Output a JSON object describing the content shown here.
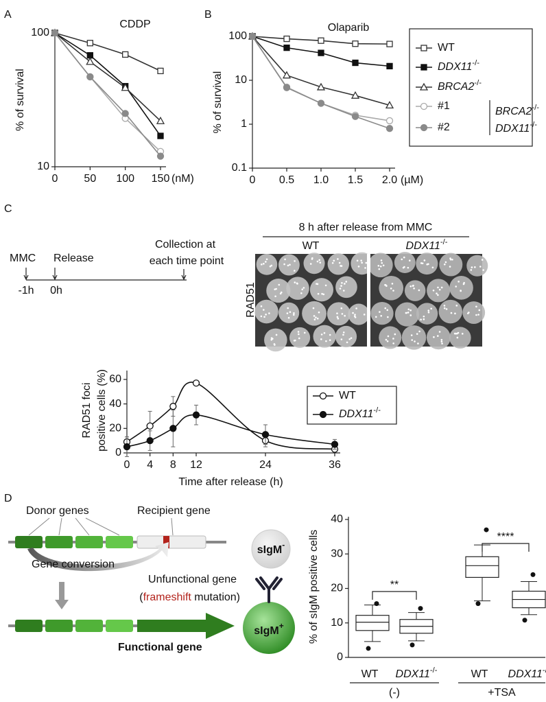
{
  "panel_labels": [
    "A",
    "B",
    "C",
    "D"
  ],
  "chart_data": [
    {
      "type": "line",
      "title": "CDDP",
      "x_unit": "(nM)",
      "ylabel": "% of survival",
      "x": [
        0,
        50,
        100,
        150
      ],
      "xlim": [
        0,
        150
      ],
      "xticks": [
        0,
        50,
        100,
        150
      ],
      "ylim": [
        10,
        100
      ],
      "yticks": [
        10,
        100
      ],
      "log_y": true,
      "series": [
        {
          "name": "WT",
          "color": "#333333",
          "marker": "square",
          "filled": false,
          "values": [
            100,
            84,
            69,
            52
          ]
        },
        {
          "name": "DDX11-/-",
          "color": "#111111",
          "marker": "square",
          "filled": true,
          "values": [
            100,
            68,
            40,
            17
          ]
        },
        {
          "name": "BRCA2-/-",
          "color": "#333333",
          "marker": "triangle",
          "filled": false,
          "values": [
            100,
            61,
            39,
            22
          ]
        },
        {
          "name": "#1",
          "color": "#aaaaaa",
          "marker": "circle",
          "filled": false,
          "values": [
            100,
            47,
            23,
            13
          ]
        },
        {
          "name": "#2",
          "color": "#8a8a8a",
          "marker": "circle",
          "filled": true,
          "values": [
            100,
            47,
            25,
            12
          ]
        }
      ]
    },
    {
      "type": "line",
      "title": "Olaparib",
      "x_unit": "(µM)",
      "ylabel": "% of survival",
      "x": [
        0,
        0.5,
        1,
        1.5,
        2
      ],
      "xlim": [
        0,
        2
      ],
      "xticks": [
        0,
        0.5,
        {
          "value": 1,
          "label": "1.0"
        },
        1.5,
        {
          "value": 2,
          "label": "2.0"
        }
      ],
      "ylim": [
        0.1,
        100
      ],
      "yticks": [
        0.1,
        1,
        10,
        100
      ],
      "log_y": true,
      "legend_group_label": [
        "BRCA2-/-",
        "DDX11-/-"
      ],
      "series": [
        {
          "name": "WT",
          "color": "#333333",
          "marker": "square",
          "filled": false,
          "values": [
            100,
            88,
            80,
            68,
            67
          ]
        },
        {
          "name": "DDX11-/-",
          "color": "#111111",
          "marker": "square",
          "filled": true,
          "values": [
            100,
            55,
            42,
            25,
            21
          ]
        },
        {
          "name": "BRCA2-/-",
          "color": "#333333",
          "marker": "triangle",
          "filled": false,
          "values": [
            100,
            13,
            7,
            4.5,
            2.7
          ]
        },
        {
          "name": "#1",
          "color": "#aaaaaa",
          "marker": "circle",
          "filled": false,
          "values": [
            100,
            7,
            3,
            1.6,
            1.2
          ]
        },
        {
          "name": "#2",
          "color": "#8a8a8a",
          "marker": "circle",
          "filled": true,
          "values": [
            100,
            6.8,
            3,
            1.5,
            0.8
          ]
        }
      ]
    },
    {
      "type": "line",
      "smooth": true,
      "ylabel": [
        "RAD51 foci",
        "positive cells (%)"
      ],
      "xlabel": "Time after release (h)",
      "x": [
        0,
        4,
        8,
        12,
        24,
        36
      ],
      "xlim": [
        0,
        36
      ],
      "xticks": [
        0,
        4,
        8,
        12,
        24,
        36
      ],
      "ylim": [
        0,
        65
      ],
      "yticks": [
        0,
        20,
        40,
        60
      ],
      "series": [
        {
          "name": "WT",
          "color": "#111111",
          "marker": "circle",
          "filled": false,
          "values": [
            9,
            22,
            38,
            57,
            10,
            3
          ],
          "errors": [
            4,
            12,
            8,
            0,
            5,
            2
          ]
        },
        {
          "name": "DDX11-/-",
          "color": "#111111",
          "marker": "circle",
          "filled": true,
          "values": [
            5,
            10,
            20,
            31,
            15,
            7
          ],
          "errors": [
            8,
            8,
            15,
            8,
            8,
            4
          ]
        }
      ]
    },
    {
      "type": "box",
      "ylabel": "% of sIgM positive cells",
      "categories": [
        "WT",
        "DDX11-/-",
        "WT",
        "DDX11-/-"
      ],
      "groups": [
        "(-)",
        "+TSA"
      ],
      "ylim": [
        0,
        40
      ],
      "yticks": [
        0,
        10,
        20,
        30,
        40
      ],
      "significance": [
        "**",
        "****"
      ],
      "boxes": [
        {
          "min": 4.6,
          "q1": 7.8,
          "median": 10.2,
          "q3": 12.2,
          "max": 15.2,
          "outliers": [
            2.6,
            15.6
          ]
        },
        {
          "min": 4.8,
          "q1": 7,
          "median": 9,
          "q3": 11,
          "max": 13,
          "outliers": [
            3.6,
            14.2
          ]
        },
        {
          "min": 16.4,
          "q1": 23.2,
          "median": 26.6,
          "q3": 29.2,
          "max": 32.6,
          "outliers": [
            15.6,
            37
          ]
        },
        {
          "min": 12.4,
          "q1": 14.4,
          "median": 16.8,
          "q3": 19.2,
          "max": 22,
          "outliers": [
            10.8,
            24
          ]
        }
      ]
    }
  ],
  "timeline": {
    "mmc": "MMC",
    "release": "Release",
    "collection": [
      "Collection at",
      "each time point"
    ],
    "t_mmc": "-1h",
    "t_release": "0h"
  },
  "micrograph": {
    "header": "8 h after release from MMC",
    "columns": [
      "WT",
      "DDX11-/-"
    ],
    "stain": "RAD51"
  },
  "diagram": {
    "donor": "Donor genes",
    "recipient": "Recipient gene",
    "conversion": "Gene conversion",
    "unfunctional": "Unfunctional gene",
    "note": [
      "(",
      "frameshift",
      " mutation)"
    ],
    "functional": "Functional gene",
    "negative": "sIgM-",
    "positive": "sIgM+"
  }
}
